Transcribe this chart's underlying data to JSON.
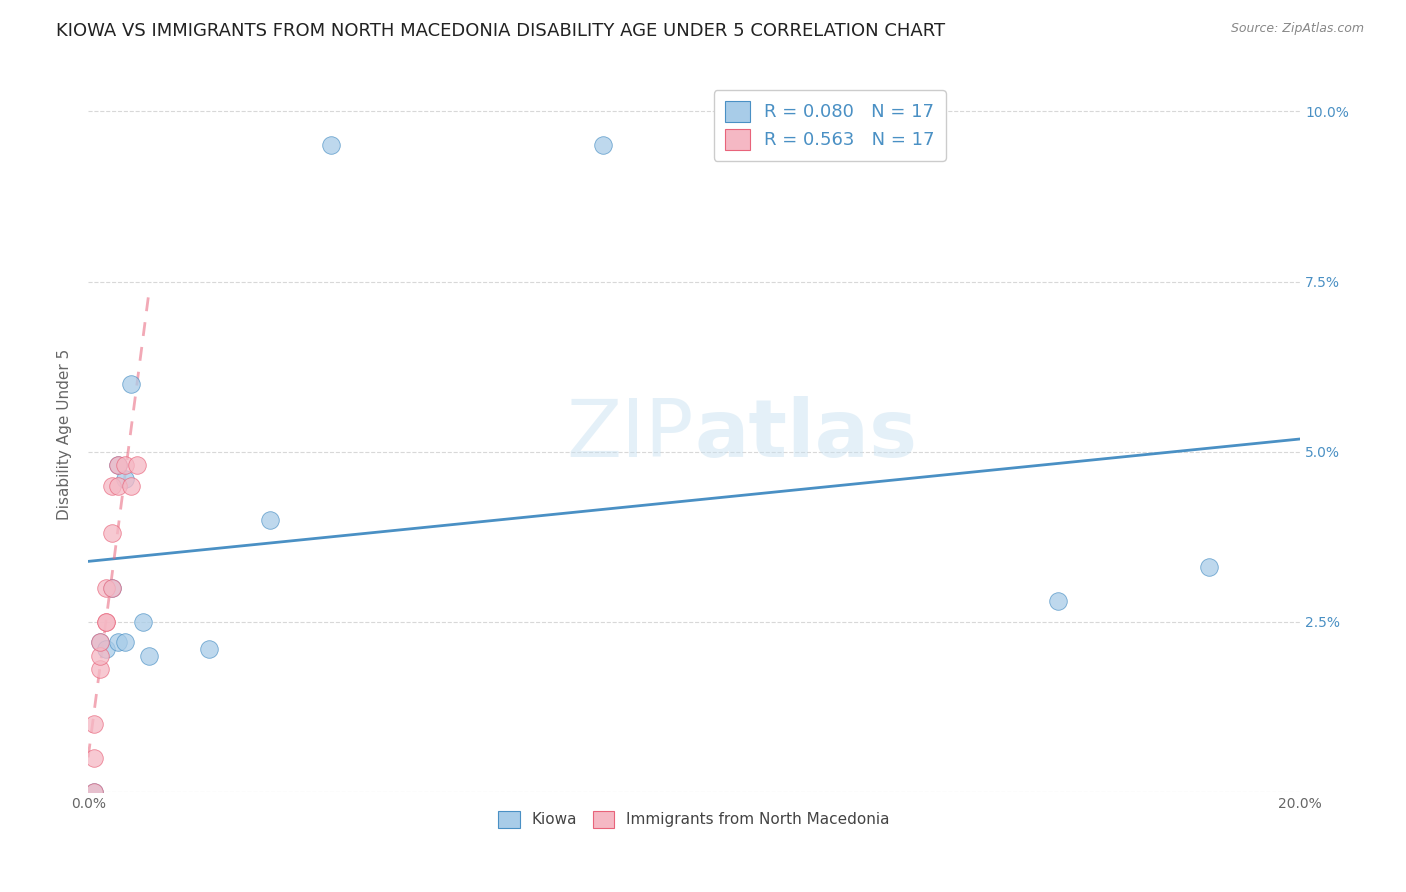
{
  "title": "KIOWA VS IMMIGRANTS FROM NORTH MACEDONIA DISABILITY AGE UNDER 5 CORRELATION CHART",
  "source": "Source: ZipAtlas.com",
  "ylabel": "Disability Age Under 5",
  "legend_label1": "Kiowa",
  "legend_label2": "Immigrants from North Macedonia",
  "r1": 0.08,
  "n1": 17,
  "r2": 0.563,
  "n2": 17,
  "xlim": [
    0.0,
    0.2
  ],
  "ylim": [
    0.0,
    0.105
  ],
  "color_blue": "#a8cce8",
  "color_pink": "#f5b8c4",
  "color_blue_line": "#4a90c4",
  "color_pink_line": "#e8637a",
  "background": "#ffffff",
  "grid_color": "#d8d8d8",
  "kiowa_x": [
    0.001,
    0.002,
    0.003,
    0.004,
    0.005,
    0.005,
    0.006,
    0.006,
    0.007,
    0.009,
    0.01,
    0.02,
    0.03,
    0.04,
    0.085,
    0.16,
    0.185
  ],
  "kiowa_y": [
    0.0,
    0.022,
    0.021,
    0.03,
    0.022,
    0.048,
    0.022,
    0.046,
    0.06,
    0.025,
    0.02,
    0.021,
    0.04,
    0.095,
    0.095,
    0.028,
    0.033
  ],
  "macedonia_x": [
    0.001,
    0.001,
    0.001,
    0.002,
    0.002,
    0.002,
    0.003,
    0.003,
    0.003,
    0.004,
    0.004,
    0.004,
    0.005,
    0.005,
    0.006,
    0.007,
    0.008
  ],
  "macedonia_y": [
    0.0,
    0.005,
    0.01,
    0.018,
    0.02,
    0.022,
    0.025,
    0.025,
    0.03,
    0.03,
    0.038,
    0.045,
    0.045,
    0.048,
    0.048,
    0.045,
    0.048
  ],
  "title_fontsize": 13,
  "axis_label_fontsize": 11,
  "tick_fontsize": 10,
  "legend_fontsize": 13
}
